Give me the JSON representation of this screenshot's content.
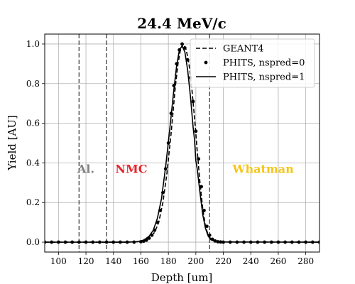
{
  "chart_data": {
    "type": "line",
    "title": "24.4 MeV/c",
    "xlabel": "Depth [um]",
    "ylabel": "Yield [AU]",
    "xlim": [
      90,
      290
    ],
    "ylim": [
      -0.05,
      1.05
    ],
    "xticks": [
      100,
      120,
      140,
      160,
      180,
      200,
      220,
      240,
      260,
      280
    ],
    "yticks": [
      0.0,
      0.2,
      0.4,
      0.6,
      0.8,
      1.0
    ],
    "grid": true,
    "legend_position": "top-right",
    "boundaries": [
      115,
      135,
      210
    ],
    "regions": [
      {
        "label": "Al.",
        "x": 120,
        "y": 0.35,
        "color": "#808080"
      },
      {
        "label": "NMC",
        "x": 153,
        "y": 0.35,
        "color": "#e8232a"
      },
      {
        "label": "Whatman",
        "x": 249,
        "y": 0.35,
        "color": "#f5c518"
      }
    ],
    "series": [
      {
        "name": "GEANT4",
        "style": "dashed",
        "x": [
          90,
          150,
          158,
          163,
          167,
          170,
          173,
          176,
          179,
          182,
          185,
          187,
          189,
          191,
          193,
          195,
          197,
          199,
          201,
          203,
          205,
          207,
          209,
          211,
          213,
          216,
          220,
          290
        ],
        "y": [
          0,
          0,
          0.002,
          0.01,
          0.025,
          0.05,
          0.1,
          0.2,
          0.35,
          0.55,
          0.78,
          0.9,
          0.98,
          1.0,
          0.97,
          0.9,
          0.78,
          0.63,
          0.46,
          0.3,
          0.17,
          0.08,
          0.035,
          0.015,
          0.008,
          0.004,
          0.001,
          0
        ]
      },
      {
        "name": "PHITS, nspred=0",
        "style": "points",
        "x": [
          90,
          95,
          100,
          105,
          110,
          115,
          120,
          125,
          130,
          135,
          140,
          145,
          150,
          155,
          160,
          162,
          164,
          166,
          168,
          170,
          172,
          174,
          176,
          178,
          180,
          182,
          184,
          186,
          188,
          190,
          192,
          194,
          196,
          198,
          200,
          202,
          204,
          206,
          208,
          210,
          212,
          214,
          216,
          218,
          220,
          225,
          230,
          235,
          240,
          245,
          250,
          255,
          260,
          265,
          270,
          275,
          280,
          285,
          290
        ],
        "y": [
          0,
          0,
          0,
          0,
          0,
          0,
          0,
          0,
          0,
          0,
          0,
          0,
          0,
          0,
          0.002,
          0.005,
          0.01,
          0.02,
          0.035,
          0.06,
          0.1,
          0.16,
          0.25,
          0.37,
          0.5,
          0.65,
          0.79,
          0.9,
          0.97,
          1.0,
          0.98,
          0.92,
          0.83,
          0.71,
          0.56,
          0.42,
          0.28,
          0.16,
          0.08,
          0.035,
          0.015,
          0.006,
          0.002,
          0.001,
          0,
          0,
          0,
          0,
          0,
          0,
          0,
          0,
          0,
          0,
          0,
          0,
          0,
          0,
          0
        ]
      },
      {
        "name": "PHITS, nspred=1",
        "style": "solid",
        "x": [
          90,
          150,
          158,
          162,
          166,
          169,
          172,
          175,
          178,
          181,
          184,
          186,
          188,
          190,
          192,
          194,
          196,
          198,
          199,
          200,
          201,
          203,
          205,
          207,
          209,
          211,
          214,
          220,
          290
        ],
        "y": [
          0,
          0,
          0.003,
          0.01,
          0.03,
          0.06,
          0.12,
          0.22,
          0.38,
          0.57,
          0.77,
          0.89,
          0.97,
          0.99,
          0.96,
          0.87,
          0.74,
          0.58,
          0.52,
          0.41,
          0.37,
          0.25,
          0.14,
          0.07,
          0.03,
          0.012,
          0.004,
          0.001,
          0
        ]
      }
    ]
  }
}
